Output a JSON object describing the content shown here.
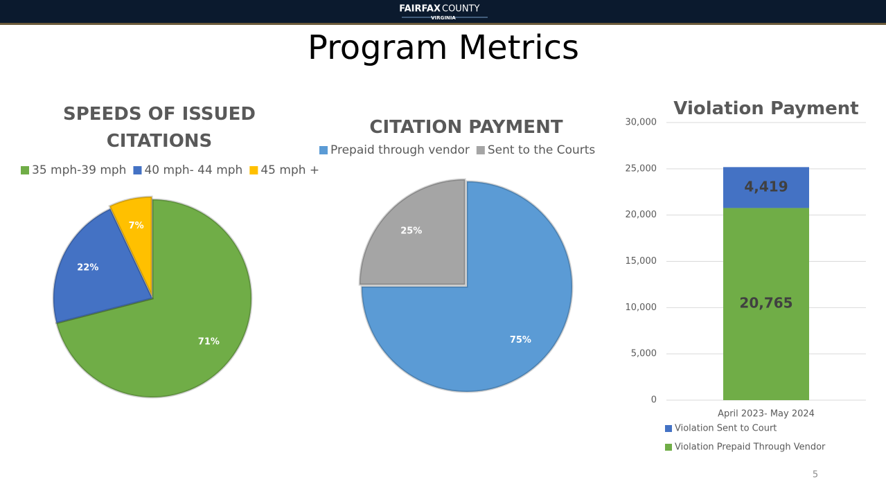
{
  "header": {
    "brand_bold": "FAIRFAX",
    "brand": "COUNTY",
    "sub": "VIRGINIA"
  },
  "title": "Program Metrics",
  "page_number": "5",
  "chart_data": [
    {
      "type": "pie",
      "title": "SPEEDS OF ISSUED CITATIONS",
      "categories": [
        "35 mph-39 mph",
        "40 mph- 44 mph",
        "45 mph +"
      ],
      "values": [
        71,
        22,
        7
      ],
      "value_labels": [
        "71%",
        "22%",
        "7%"
      ],
      "colors": [
        "#70ad47",
        "#4472c4",
        "#ffc000"
      ]
    },
    {
      "type": "pie",
      "title": "CITATION PAYMENT",
      "categories": [
        "Prepaid through vendor",
        "Sent to the Courts"
      ],
      "values": [
        75,
        25
      ],
      "value_labels": [
        "75%",
        "25%"
      ],
      "colors": [
        "#5b9bd5",
        "#a5a5a5"
      ]
    },
    {
      "type": "stacked_bar",
      "title": "Violation Payment",
      "categories": [
        "April 2023- May 2024"
      ],
      "series": [
        {
          "name": "Violation Prepaid Through Vendor",
          "color": "#70ad47",
          "values": [
            20765
          ],
          "value_labels": [
            "20,765"
          ]
        },
        {
          "name": "Violation Sent to Court",
          "color": "#4472c4",
          "values": [
            4419
          ],
          "value_labels": [
            "4,419"
          ]
        }
      ],
      "ylim": [
        0,
        30000
      ],
      "yticks": [
        0,
        {
          "value": 5000,
          "label": "5,000"
        },
        {
          "value": 10000,
          "label": "10,000"
        },
        {
          "value": 15000,
          "label": "15,000"
        },
        {
          "value": 20000,
          "label": "20,000"
        },
        {
          "value": 25000,
          "label": "25,000"
        },
        {
          "value": 30000,
          "label": "30,000"
        }
      ],
      "grid": true
    }
  ]
}
